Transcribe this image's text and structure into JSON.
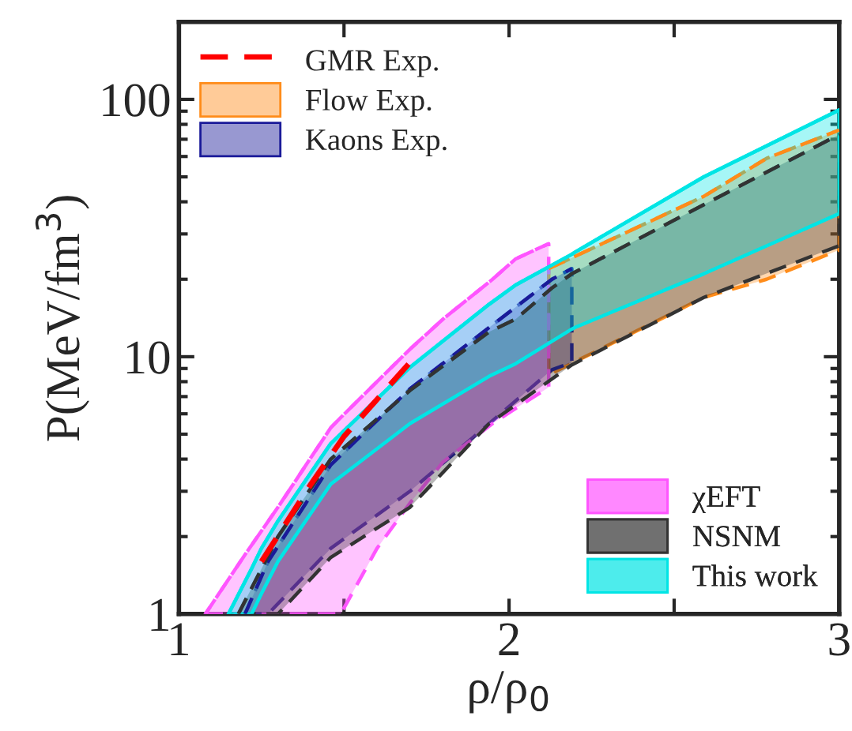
{
  "chart_data": {
    "type": "line",
    "xlabel": "ρ/ρ$_{0}$",
    "ylabel": "P(MeV/fm$^{3}$)",
    "log": "y",
    "xlim": [
      1,
      3
    ],
    "ylim": [
      1,
      200
    ],
    "xticks": [
      1,
      {
        "value": 1.5,
        "label": null
      },
      2,
      {
        "value": 2.5,
        "label": null
      },
      3
    ],
    "yticks": [
      1,
      10,
      100
    ],
    "grid": false,
    "legend": [
      "top left",
      "bottom right"
    ],
    "series": [
      {
        "name": "GMR Exp.",
        "color": "#ff0000",
        "line_style": "dashed",
        "x": [
          1.25,
          1.4,
          1.5,
          1.7
        ],
        "values": [
          1.6,
          3.2,
          4.9,
          9.5
        ]
      },
      {
        "name": "Flow Exp.",
        "color": "#ff8c1a",
        "line_style": "dashed",
        "x": [
          2.12,
          2.59,
          2.78,
          3
        ],
        "values": [
          22,
          42,
          59,
          76
        ],
        "lower": [
          8.5,
          17,
          20,
          26
        ],
        "upper": [
          22,
          42,
          59,
          76
        ]
      },
      {
        "name": "Kaons Exp.",
        "color": "#1a1a99",
        "line_style": "dashed",
        "x": [
          1.2,
          1.27,
          1.46,
          1.7,
          1.94,
          2.13,
          2.19
        ],
        "values": [
          1,
          1.6,
          3.8,
          7.5,
          13,
          20,
          22
        ],
        "lower": [
          1,
          1,
          1.8,
          3.0,
          5.5,
          8.9,
          9.5
        ],
        "upper": [
          1,
          1.6,
          3.8,
          7.5,
          13,
          20,
          22
        ]
      },
      {
        "name": "χEFT",
        "color": "#ff55ff",
        "line_style": "dashed",
        "x": [
          1.08,
          1.2,
          1.3,
          1.46,
          1.49,
          1.6,
          1.7,
          1.8,
          1.95,
          2.02,
          2.12
        ],
        "values": [
          1,
          1.7,
          2.6,
          5.3,
          5.8,
          8.0,
          10.7,
          14,
          20,
          24,
          27.5
        ],
        "lower": [
          1,
          1,
          1,
          1,
          1,
          1.8,
          2.7,
          3.9,
          5.5,
          6.3,
          7.6
        ],
        "upper": [
          1,
          1.7,
          2.6,
          5.3,
          5.8,
          8.0,
          10.7,
          14,
          20,
          24,
          27.5
        ]
      },
      {
        "name": "NSNM",
        "color": "#333333",
        "line_style": "dashed",
        "x": [
          1.18,
          1.3,
          1.46,
          1.7,
          1.94,
          2.02,
          2.13,
          2.19,
          2.59,
          3
        ],
        "values": [
          1,
          2.0,
          4.0,
          7.4,
          12.5,
          14,
          18.5,
          21,
          39,
          73
        ],
        "lower": [
          1,
          1,
          1.66,
          2.6,
          5.5,
          6.5,
          8.2,
          9.3,
          17,
          27
        ],
        "upper": [
          1,
          2.0,
          4.0,
          7.4,
          12.5,
          14,
          18.5,
          21,
          39,
          73
        ]
      },
      {
        "name": "This work",
        "color": "#00e5e5",
        "line_style": "solid",
        "x": [
          1.15,
          1.22,
          1.25,
          1.3,
          1.46,
          1.7,
          1.94,
          2.02,
          2.19,
          2.2,
          2.59,
          3
        ],
        "values": [
          1,
          1.5,
          1.8,
          2.3,
          4.6,
          9.1,
          16,
          19,
          25,
          25.5,
          50,
          91
        ],
        "lower": [
          1,
          1,
          1.2,
          1.6,
          3.2,
          5.5,
          8.4,
          9.4,
          12.8,
          13,
          21,
          36
        ],
        "upper": [
          1,
          1.5,
          1.8,
          2.3,
          4.6,
          9.1,
          16,
          19,
          25,
          25.5,
          50,
          91
        ]
      }
    ]
  }
}
